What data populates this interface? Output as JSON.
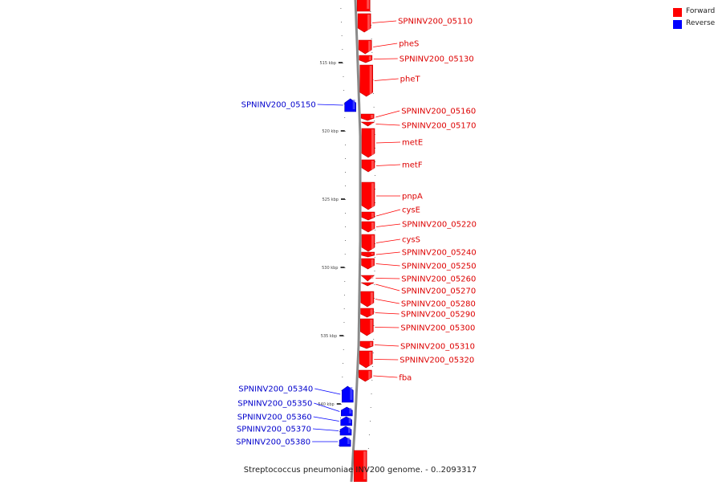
{
  "legend": [
    {
      "label": "Forward",
      "color": "#ff0000"
    },
    {
      "label": "Reverse",
      "color": "#0000ff"
    }
  ],
  "caption": "Streptococcus pneumoniae INV200 genome. - 0..2093317",
  "ticks": [
    {
      "label": "515 kbp",
      "kbp": 515
    },
    {
      "label": "520 kbp",
      "kbp": 520
    },
    {
      "label": "525 kbp",
      "kbp": 525
    },
    {
      "label": "530 kbp",
      "kbp": 530
    },
    {
      "label": "535 kbp",
      "kbp": 535
    },
    {
      "label": "540 kbp",
      "kbp": 540
    }
  ],
  "genes": [
    {
      "name": "",
      "strand": "forward"
    },
    {
      "name": "SPNINV200_05110",
      "strand": "forward"
    },
    {
      "name": "pheS",
      "strand": "forward"
    },
    {
      "name": "SPNINV200_05130",
      "strand": "forward"
    },
    {
      "name": "pheT",
      "strand": "forward"
    },
    {
      "name": "SPNINV200_05150",
      "strand": "reverse"
    },
    {
      "name": "SPNINV200_05160",
      "strand": "forward"
    },
    {
      "name": "SPNINV200_05170",
      "strand": "forward"
    },
    {
      "name": "metE",
      "strand": "forward"
    },
    {
      "name": "metF",
      "strand": "forward"
    },
    {
      "name": "pnpA",
      "strand": "forward"
    },
    {
      "name": "cysE",
      "strand": "forward"
    },
    {
      "name": "SPNINV200_05220",
      "strand": "forward"
    },
    {
      "name": "cysS",
      "strand": "forward"
    },
    {
      "name": "SPNINV200_05240",
      "strand": "forward"
    },
    {
      "name": "SPNINV200_05250",
      "strand": "forward"
    },
    {
      "name": "SPNINV200_05260",
      "strand": "forward"
    },
    {
      "name": "SPNINV200_05270",
      "strand": "forward"
    },
    {
      "name": "SPNINV200_05280",
      "strand": "forward"
    },
    {
      "name": "SPNINV200_05290",
      "strand": "forward"
    },
    {
      "name": "SPNINV200_05300",
      "strand": "forward"
    },
    {
      "name": "SPNINV200_05310",
      "strand": "forward"
    },
    {
      "name": "SPNINV200_05320",
      "strand": "forward"
    },
    {
      "name": "fba",
      "strand": "forward"
    },
    {
      "name": "SPNINV200_05340",
      "strand": "reverse"
    },
    {
      "name": "SPNINV200_05350",
      "strand": "reverse"
    },
    {
      "name": "SPNINV200_05360",
      "strand": "reverse"
    },
    {
      "name": "SPNINV200_05370",
      "strand": "reverse"
    },
    {
      "name": "SPNINV200_05380",
      "strand": "reverse"
    },
    {
      "name": "",
      "strand": "forward"
    }
  ],
  "colors": {
    "forward": "#ff0000",
    "reverse": "#0000ff",
    "backbone": "#888888"
  }
}
